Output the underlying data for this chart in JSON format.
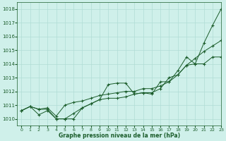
{
  "title": "Graphe pression niveau de la mer (hPa)",
  "bg_color": "#cff0ea",
  "grid_color": "#b0ddd5",
  "line_color": "#1a5c2a",
  "xlim": [
    -0.5,
    23
  ],
  "ylim": [
    1009.5,
    1018.5
  ],
  "yticks": [
    1010,
    1011,
    1012,
    1013,
    1014,
    1015,
    1016,
    1017,
    1018
  ],
  "xticks": [
    0,
    1,
    2,
    3,
    4,
    5,
    6,
    7,
    8,
    9,
    10,
    11,
    12,
    13,
    14,
    15,
    16,
    17,
    18,
    19,
    20,
    21,
    22,
    23
  ],
  "series": [
    [
      1010.6,
      1010.9,
      1010.7,
      1010.7,
      1010.0,
      1010.0,
      1010.0,
      1010.8,
      1011.1,
      1011.4,
      1012.5,
      1012.6,
      1012.6,
      1011.8,
      1011.9,
      1011.8,
      1012.7,
      1012.7,
      1013.5,
      1014.5,
      1014.0,
      1015.5,
      1016.8,
      1018.0
    ],
    [
      1010.6,
      1010.9,
      1010.3,
      1010.6,
      1010.0,
      1010.0,
      1010.4,
      1010.8,
      1011.1,
      1011.4,
      1011.5,
      1011.5,
      1011.6,
      1011.8,
      1011.9,
      1011.9,
      1012.2,
      1013.0,
      1013.2,
      1013.9,
      1014.0,
      1014.0,
      1014.5,
      1014.5
    ],
    [
      1010.6,
      1010.9,
      1010.7,
      1010.8,
      1010.2,
      1011.0,
      1011.2,
      1011.3,
      1011.5,
      1011.7,
      1011.8,
      1011.9,
      1012.0,
      1012.0,
      1012.2,
      1012.2,
      1012.4,
      1012.7,
      1013.2,
      1013.9,
      1014.4,
      1014.9,
      1015.3,
      1015.7
    ]
  ]
}
